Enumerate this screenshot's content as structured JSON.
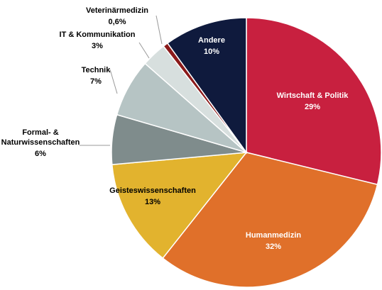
{
  "chart_data": {
    "type": "pie",
    "categories": [
      "Wirtschaft & Politik",
      "Humanmedizin",
      "Geisteswissenschaften",
      "Formal- &\nNaturwissenschaften",
      "Technik",
      "IT & Kommunikation",
      "Veterinärmedizin",
      "Andere"
    ],
    "values": [
      29,
      32,
      13,
      6,
      7,
      3,
      0.6,
      10
    ],
    "value_labels": [
      "29%",
      "32%",
      "13%",
      "6%",
      "7%",
      "3%",
      "0,6%",
      "10%"
    ],
    "colors": [
      "#c8203f",
      "#e0702a",
      "#e2b32e",
      "#7f8c8c",
      "#b6c4c4",
      "#d7dfde",
      "#8b1a1a",
      "#0f1a3d"
    ]
  }
}
